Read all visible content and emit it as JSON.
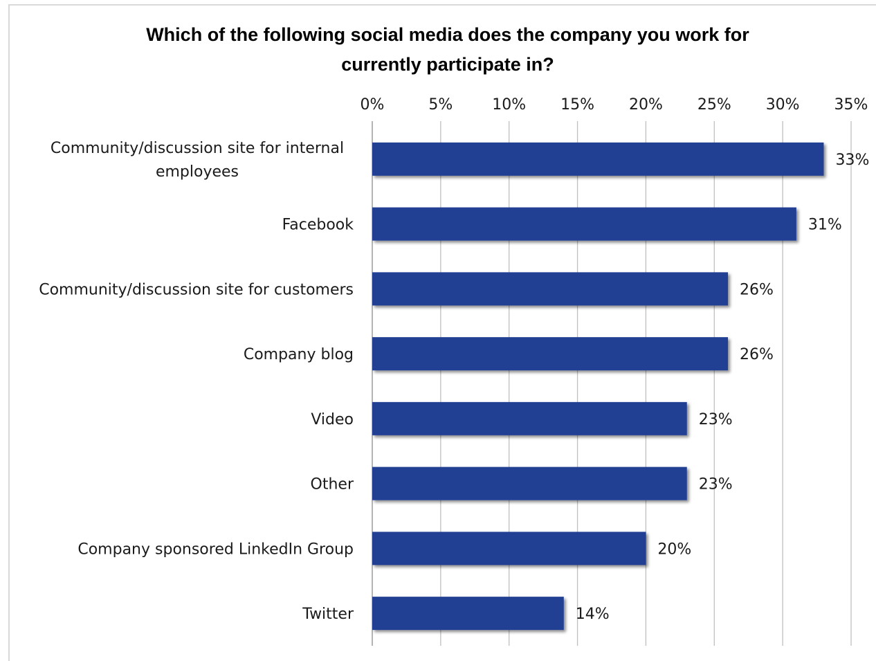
{
  "chart_data": {
    "type": "bar",
    "orientation": "horizontal",
    "title": "Which of the following social  media does the company you work for currently participate in?",
    "title_lines": [
      "Which of the following social  media does the company you work for",
      "currently participate in?"
    ],
    "categories": [
      "Community/discussion site for internal employees",
      "Facebook",
      "Community/discussion site for customers",
      "Company blog",
      "Video",
      "Other",
      "Company sponsored LinkedIn Group",
      "Twitter"
    ],
    "category_lines": [
      [
        "Community/discussion site for internal",
        "employees"
      ],
      [
        "Facebook"
      ],
      [
        "Community/discussion site for customers"
      ],
      [
        "Company blog"
      ],
      [
        "Video"
      ],
      [
        "Other"
      ],
      [
        "Company sponsored LinkedIn Group"
      ],
      [
        "Twitter"
      ]
    ],
    "values": [
      33,
      31,
      26,
      26,
      23,
      23,
      20,
      14
    ],
    "data_labels": [
      "33%",
      "31%",
      "26%",
      "26%",
      "23%",
      "23%",
      "20%",
      "14%"
    ],
    "x_ticks": [
      0,
      5,
      10,
      15,
      20,
      25,
      30,
      35
    ],
    "x_tick_labels": [
      "0%",
      "5%",
      "10%",
      "15%",
      "20%",
      "25%",
      "30%",
      "35%"
    ],
    "xlim": [
      0,
      35
    ],
    "x_axis_position": "top",
    "grid": "vertical",
    "legend": "none",
    "bar_color": "#233f93",
    "grid_color": "#bfbfbf"
  }
}
